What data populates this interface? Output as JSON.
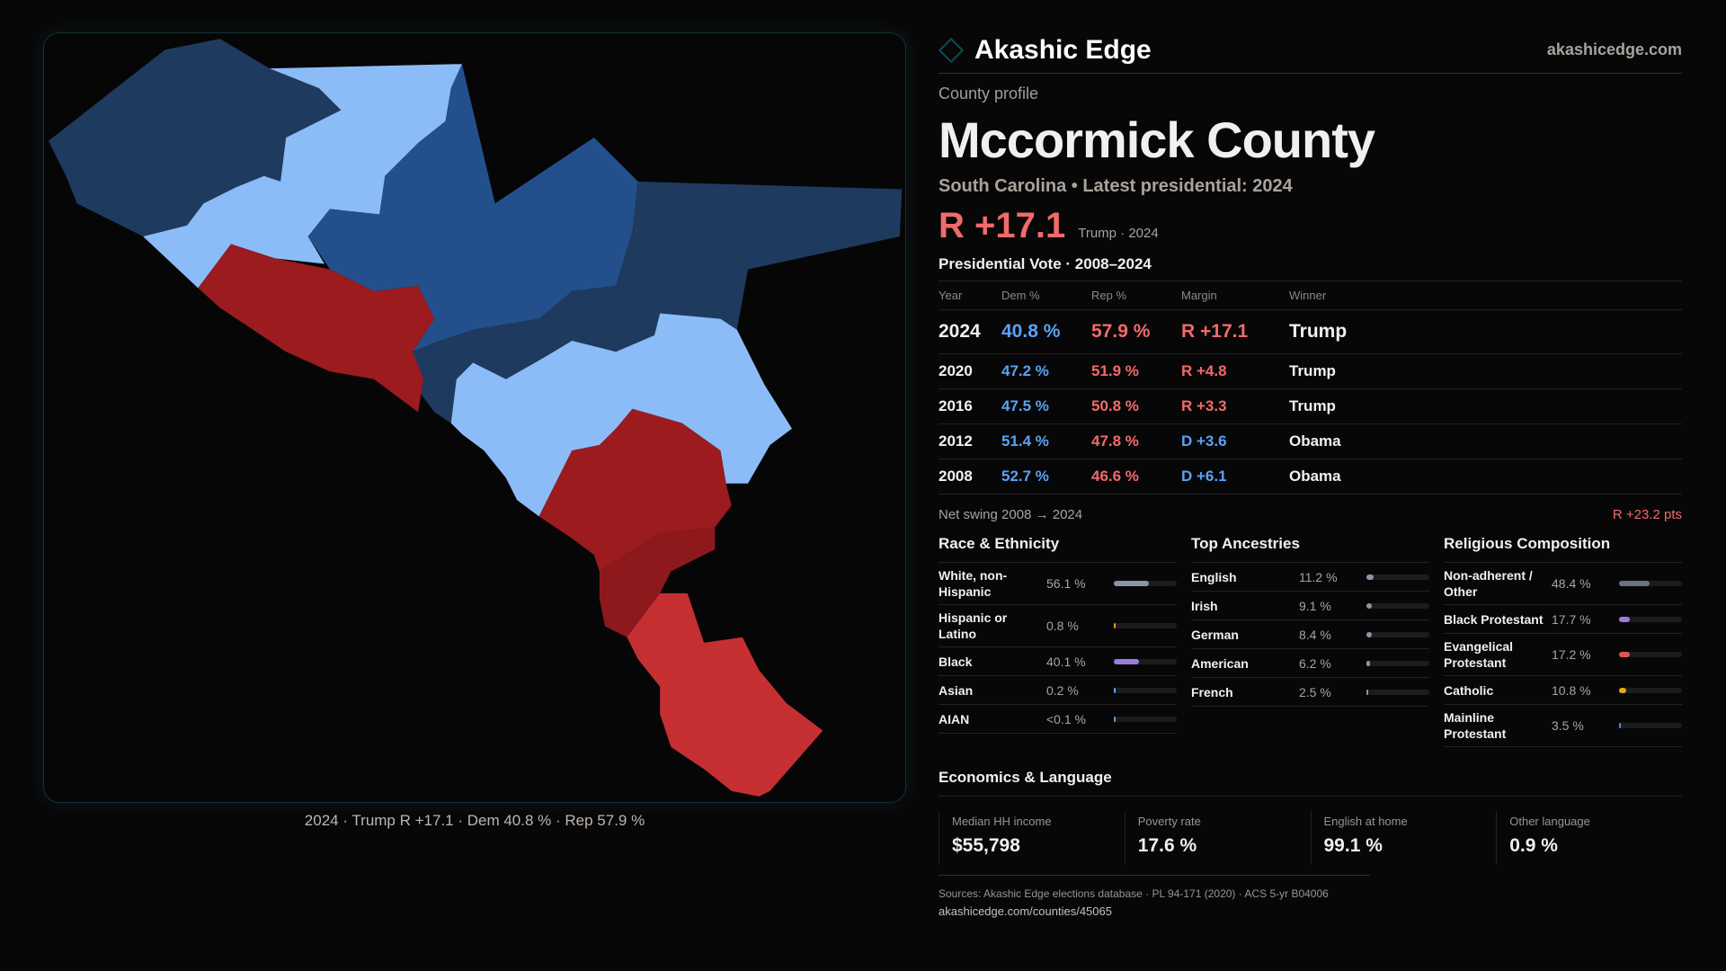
{
  "brand": {
    "name": "Akashic Edge",
    "site": "akashicedge.com"
  },
  "profile": {
    "kicker": "County profile",
    "title": "Mccormick County",
    "subtitle": "South Carolina • Latest presidential: 2024",
    "margin": "R +17.1",
    "winner_note": "Trump · 2024"
  },
  "votes": {
    "heading": "Presidential Vote · 2008–2024",
    "columns": [
      "Year",
      "Dem %",
      "Rep %",
      "Margin",
      "Winner"
    ],
    "rows": [
      {
        "year": "2024",
        "dem": "40.8 %",
        "rep": "57.9 %",
        "margin": "R +17.1",
        "winner": "Trump",
        "party": "rep"
      },
      {
        "year": "2020",
        "dem": "47.2 %",
        "rep": "51.9 %",
        "margin": "R +4.8",
        "winner": "Trump",
        "party": "rep"
      },
      {
        "year": "2016",
        "dem": "47.5 %",
        "rep": "50.8 %",
        "margin": "R +3.3",
        "winner": "Trump",
        "party": "rep"
      },
      {
        "year": "2012",
        "dem": "51.4 %",
        "rep": "47.8 %",
        "margin": "D +3.6",
        "winner": "Obama",
        "party": "dem"
      },
      {
        "year": "2008",
        "dem": "52.7 %",
        "rep": "46.6 %",
        "margin": "D +6.1",
        "winner": "Obama",
        "party": "dem"
      }
    ]
  },
  "swing": {
    "label": "Net swing 2008 → 2024",
    "value": "R +23.2 pts"
  },
  "race": {
    "heading": "Race & Ethnicity",
    "items": [
      {
        "label": "White, non-Hispanic",
        "pct": "56.1 %",
        "value": 56.1,
        "color": "#8a96a8"
      },
      {
        "label": "Hispanic or Latino",
        "pct": "0.8 %",
        "value": 0.8,
        "color": "#d99a1e"
      },
      {
        "label": "Black",
        "pct": "40.1 %",
        "value": 40.1,
        "color": "#9b7be0"
      },
      {
        "label": "Asian",
        "pct": "0.2 %",
        "value": 0.2,
        "color": "#5aa2f5"
      },
      {
        "label": "AIAN",
        "pct": "<0.1 %",
        "value": 0.05,
        "color": "#5aa2f5"
      }
    ]
  },
  "ancestry": {
    "heading": "Top Ancestries",
    "items": [
      {
        "label": "English",
        "pct": "11.2 %",
        "value": 11.2,
        "color": "#8a96a8"
      },
      {
        "label": "Irish",
        "pct": "9.1 %",
        "value": 9.1,
        "color": "#8a96a8"
      },
      {
        "label": "German",
        "pct": "8.4 %",
        "value": 8.4,
        "color": "#8a96a8"
      },
      {
        "label": "American",
        "pct": "6.2 %",
        "value": 6.2,
        "color": "#8a96a8"
      },
      {
        "label": "French",
        "pct": "2.5 %",
        "value": 2.5,
        "color": "#8a96a8"
      }
    ]
  },
  "religion": {
    "heading": "Religious Composition",
    "items": [
      {
        "label": "Non-adherent / Other",
        "pct": "48.4 %",
        "value": 48.4,
        "color": "#6b7382"
      },
      {
        "label": "Black Protestant",
        "pct": "17.7 %",
        "value": 17.7,
        "color": "#9b7be0"
      },
      {
        "label": "Evangelical Protestant",
        "pct": "17.2 %",
        "value": 17.2,
        "color": "#e25555"
      },
      {
        "label": "Catholic",
        "pct": "10.8 %",
        "value": 10.8,
        "color": "#e0a81e"
      },
      {
        "label": "Mainline Protestant",
        "pct": "3.5 %",
        "value": 3.5,
        "color": "#4a8ae0"
      }
    ]
  },
  "econ": {
    "heading": "Economics & Language",
    "cards": [
      {
        "label": "Median HH income",
        "value": "$55,798"
      },
      {
        "label": "Poverty rate",
        "value": "17.6 %"
      },
      {
        "label": "English at home",
        "value": "99.1 %"
      },
      {
        "label": "Other language",
        "value": "0.9 %"
      }
    ]
  },
  "sources": {
    "text": "Sources: Akashic Edge elections database · PL 94-171 (2020) · ACS 5-yr B04006",
    "url": "akashicedge.com/counties/45065"
  },
  "map": {
    "caption": "2024 · Trump R +17.1 · Dem 40.8 % · Rep 57.9 %"
  }
}
